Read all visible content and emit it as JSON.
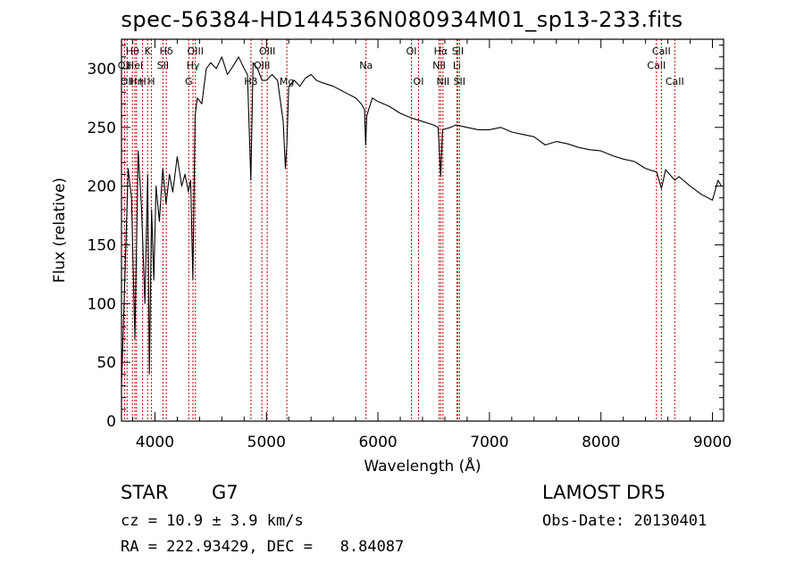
{
  "title": "spec-56384-HD144536N080934M01_sp13-233.fits",
  "footer": {
    "class_label": "STAR",
    "subclass": "G7",
    "survey": "LAMOST DR5",
    "cz": "cz = 10.9 ± 3.9 km/s",
    "obs_date": "Obs-Date: 20130401",
    "coords": "RA = 222.93429, DEC =   8.84087"
  },
  "chart_data": {
    "type": "line",
    "title": "spec-56384-HD144536N080934M01_sp13-233.fits",
    "xlabel": "Wavelength (Å)",
    "ylabel": "Flux (relative)",
    "xlim": [
      3700,
      9100
    ],
    "ylim": [
      0,
      325
    ],
    "xticks": [
      4000,
      5000,
      6000,
      7000,
      8000,
      9000
    ],
    "yticks": [
      0,
      50,
      100,
      150,
      200,
      250,
      300
    ],
    "grid": false,
    "line_color": "#000000",
    "marker_color": "#c00000",
    "series": [
      {
        "x": [
          3700,
          3730,
          3760,
          3790,
          3820,
          3850,
          3880,
          3910,
          3935,
          3950,
          3970,
          3990,
          4010,
          4040,
          4070,
          4100,
          4130,
          4160,
          4200,
          4240,
          4270,
          4300,
          4320,
          4340,
          4360,
          4380,
          4420,
          4460,
          4500,
          4550,
          4600,
          4650,
          4700,
          4750,
          4800,
          4830,
          4860,
          4880,
          4920,
          4960,
          5000,
          5050,
          5100,
          5150,
          5170,
          5183,
          5200,
          5250,
          5300,
          5350,
          5400,
          5450,
          5500,
          5600,
          5700,
          5800,
          5850,
          5880,
          5890,
          5900,
          5950,
          6000,
          6100,
          6200,
          6300,
          6400,
          6500,
          6540,
          6563,
          6580,
          6650,
          6700,
          6800,
          6900,
          7000,
          7100,
          7200,
          7300,
          7400,
          7500,
          7600,
          7700,
          7800,
          7900,
          8000,
          8100,
          8200,
          8300,
          8400,
          8500,
          8542,
          8580,
          8662,
          8700,
          8800,
          8900,
          9000,
          9050,
          9080
        ],
        "y": [
          30,
          120,
          215,
          190,
          70,
          230,
          180,
          100,
          210,
          40,
          180,
          120,
          200,
          170,
          215,
          185,
          210,
          195,
          225,
          200,
          210,
          195,
          205,
          120,
          260,
          275,
          270,
          300,
          305,
          300,
          310,
          295,
          302,
          310,
          300,
          295,
          205,
          305,
          300,
          290,
          290,
          295,
          290,
          255,
          215,
          235,
          285,
          290,
          285,
          292,
          295,
          290,
          288,
          285,
          280,
          275,
          270,
          265,
          235,
          260,
          275,
          272,
          268,
          262,
          258,
          255,
          252,
          250,
          208,
          248,
          250,
          252,
          250,
          248,
          248,
          250,
          246,
          244,
          242,
          235,
          238,
          236,
          233,
          231,
          230,
          226,
          223,
          221,
          215,
          212,
          198,
          214,
          205,
          208,
          200,
          193,
          188,
          205,
          200
        ]
      }
    ],
    "lines": [
      {
        "wl": 3727,
        "label": "OII",
        "row": 1
      },
      {
        "wl": 3750,
        "label": "OII",
        "row": 2
      },
      {
        "wl": 3798,
        "label": "Hθ",
        "row": 0
      },
      {
        "wl": 3820,
        "label": "Hel",
        "row": 1
      },
      {
        "wl": 3835,
        "label": "Hη",
        "row": 2
      },
      {
        "wl": 3889,
        "label": "H",
        "row": 2
      },
      {
        "wl": 3934,
        "label": "K",
        "row": 0
      },
      {
        "wl": 3968,
        "label": "H",
        "row": 2
      },
      {
        "wl": 4072,
        "label": "SII",
        "row": 1
      },
      {
        "wl": 4102,
        "label": "Hδ",
        "row": 0
      },
      {
        "wl": 4303,
        "label": "G",
        "row": 2
      },
      {
        "wl": 4341,
        "label": "Hγ",
        "row": 1
      },
      {
        "wl": 4363,
        "label": "OIII",
        "row": 0
      },
      {
        "wl": 4861,
        "label": "Hβ",
        "row": 2
      },
      {
        "wl": 4959,
        "label": "OIII",
        "row": 1
      },
      {
        "wl": 5007,
        "label": "OIII",
        "row": 0
      },
      {
        "wl": 5183,
        "label": "Mg",
        "row": 2
      },
      {
        "wl": 5893,
        "label": "Na",
        "row": 1
      },
      {
        "wl": 6300,
        "label": "OI",
        "row": 0
      },
      {
        "wl": 6364,
        "label": "OI",
        "row": 2
      },
      {
        "wl": 6548,
        "label": "NII",
        "row": 1
      },
      {
        "wl": 6563,
        "label": "Hα",
        "row": 0
      },
      {
        "wl": 6583,
        "label": "NII",
        "row": 2
      },
      {
        "wl": 6708,
        "label": "Li",
        "row": 1
      },
      {
        "wl": 6716,
        "label": "SII",
        "row": 0
      },
      {
        "wl": 6731,
        "label": "SII",
        "row": 2
      },
      {
        "wl": 8498,
        "label": "CaII",
        "row": 1
      },
      {
        "wl": 8542,
        "label": "CaII",
        "row": 0
      },
      {
        "wl": 8662,
        "label": "CaII",
        "row": 2
      }
    ]
  }
}
